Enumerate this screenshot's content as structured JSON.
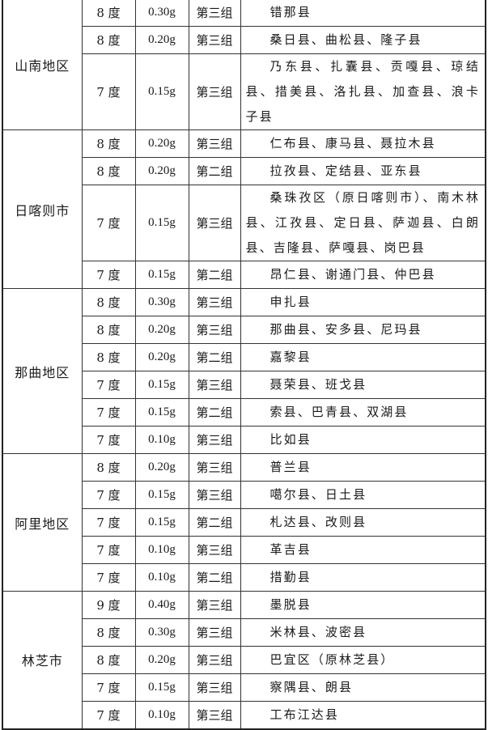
{
  "groups": [
    {
      "region": "山南地区",
      "rows": [
        {
          "intensity": "8 度",
          "acceleration": "0.30g",
          "group": "第三组",
          "counties": "错那县"
        },
        {
          "intensity": "8 度",
          "acceleration": "0.20g",
          "group": "第三组",
          "counties": "桑日县、曲松县、隆子县"
        },
        {
          "intensity": "7 度",
          "acceleration": "0.15g",
          "group": "第三组",
          "counties": "乃东县、扎囊县、贡嘎县、琼结县、措美县、洛扎县、加查县、浪卡子县",
          "lines": 2
        }
      ]
    },
    {
      "region": "日喀则市",
      "rows": [
        {
          "intensity": "8 度",
          "acceleration": "0.20g",
          "group": "第三组",
          "counties": "仁布县、康马县、聂拉木县"
        },
        {
          "intensity": "8 度",
          "acceleration": "0.20g",
          "group": "第二组",
          "counties": "拉孜县、定结县、亚东县"
        },
        {
          "intensity": "7 度",
          "acceleration": "0.15g",
          "group": "第三组",
          "counties": "桑珠孜区（原日喀则市）、南木林县、江孜县、定日县、萨迦县、白朗县、吉隆县、萨嘎县、岗巴县",
          "lines": 3
        },
        {
          "intensity": "7 度",
          "acceleration": "0.15g",
          "group": "第二组",
          "counties": "昂仁县、谢通门县、仲巴县"
        }
      ]
    },
    {
      "region": "那曲地区",
      "rows": [
        {
          "intensity": "8 度",
          "acceleration": "0.30g",
          "group": "第三组",
          "counties": "申扎县"
        },
        {
          "intensity": "8 度",
          "acceleration": "0.20g",
          "group": "第三组",
          "counties": "那曲县、安多县、尼玛县"
        },
        {
          "intensity": "8 度",
          "acceleration": "0.20g",
          "group": "第二组",
          "counties": "嘉黎县"
        },
        {
          "intensity": "7 度",
          "acceleration": "0.15g",
          "group": "第三组",
          "counties": "聂荣县、班戈县"
        },
        {
          "intensity": "7 度",
          "acceleration": "0.15g",
          "group": "第二组",
          "counties": "索县、巴青县、双湖县"
        },
        {
          "intensity": "7 度",
          "acceleration": "0.10g",
          "group": "第三组",
          "counties": "比如县"
        }
      ]
    },
    {
      "region": "阿里地区",
      "rows": [
        {
          "intensity": "8 度",
          "acceleration": "0.20g",
          "group": "第三组",
          "counties": "普兰县"
        },
        {
          "intensity": "7 度",
          "acceleration": "0.15g",
          "group": "第三组",
          "counties": "噶尔县、日土县"
        },
        {
          "intensity": "7 度",
          "acceleration": "0.15g",
          "group": "第二组",
          "counties": "札达县、改则县"
        },
        {
          "intensity": "7 度",
          "acceleration": "0.10g",
          "group": "第三组",
          "counties": "革吉县"
        },
        {
          "intensity": "7 度",
          "acceleration": "0.10g",
          "group": "第二组",
          "counties": "措勤县"
        }
      ]
    },
    {
      "region": "林芝市",
      "rows": [
        {
          "intensity": "9 度",
          "acceleration": "0.40g",
          "group": "第三组",
          "counties": "墨脱县"
        },
        {
          "intensity": "8 度",
          "acceleration": "0.30g",
          "group": "第三组",
          "counties": "米林县、波密县"
        },
        {
          "intensity": "8 度",
          "acceleration": "0.20g",
          "group": "第三组",
          "counties": "巴宜区（原林芝县）"
        },
        {
          "intensity": "7 度",
          "acceleration": "0.15g",
          "group": "第三组",
          "counties": "察隅县、朗县"
        },
        {
          "intensity": "7 度",
          "acceleration": "0.10g",
          "group": "第三组",
          "counties": "工布江达县"
        }
      ]
    }
  ]
}
